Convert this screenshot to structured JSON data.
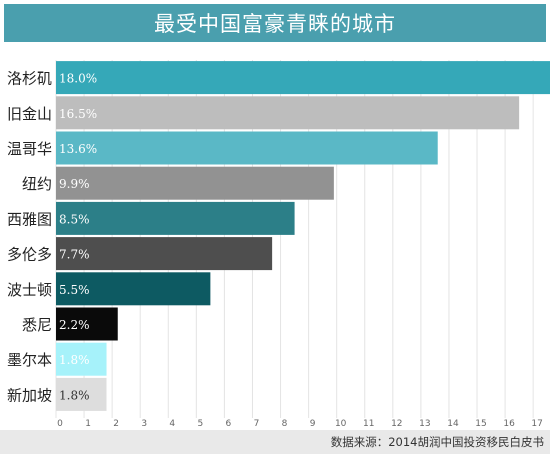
{
  "title": "最受中国富豪青睐的城市",
  "source": "数据来源：2014胡润中国投资移民白皮书",
  "chart_data": {
    "type": "bar",
    "orientation": "horizontal",
    "categories": [
      "洛杉矶",
      "旧金山",
      "温哥华",
      "纽约",
      "西雅图",
      "多伦多",
      "波士顿",
      "悉尼",
      "墨尔本",
      "新加坡"
    ],
    "values": [
      18.0,
      16.5,
      13.6,
      9.9,
      8.5,
      7.7,
      5.5,
      2.2,
      1.8,
      1.8
    ],
    "value_labels": [
      "18.0%",
      "16.5%",
      "13.6%",
      "9.9%",
      "8.5%",
      "7.7%",
      "5.5%",
      "2.2%",
      "1.8%",
      "1.8%"
    ],
    "bar_colors": [
      "#35a8b8",
      "#bdbdbd",
      "#5ab8c6",
      "#929292",
      "#2c7f88",
      "#4e4e4e",
      "#0d5a62",
      "#0a0a0a",
      "#a6f2fa",
      "#dddddd"
    ],
    "label_colors": [
      "#ffffff",
      "#ffffff",
      "#ffffff",
      "#ffffff",
      "#ffffff",
      "#ffffff",
      "#ffffff",
      "#ffffff",
      "#ffffff",
      "#333333"
    ],
    "x_ticks": [
      "0",
      "1",
      "2",
      "3",
      "4",
      "5",
      "6",
      "7",
      "8",
      "9",
      "10",
      "11",
      "12",
      "13",
      "14",
      "15",
      "16",
      "17"
    ],
    "xlim": [
      0,
      17.6
    ],
    "grid": true
  }
}
